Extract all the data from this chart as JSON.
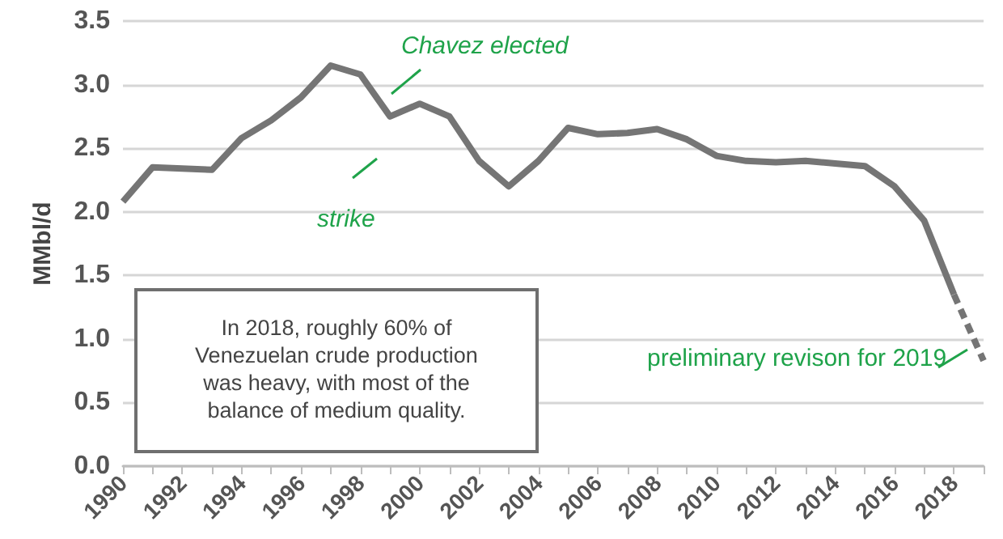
{
  "chart_data": {
    "type": "line",
    "ylabel": "MMbl/d",
    "categories": [
      "1990",
      null,
      "1992",
      null,
      "1994",
      null,
      "1996",
      null,
      "1998",
      null,
      "2000",
      null,
      "2002",
      null,
      "2004",
      null,
      "2006",
      null,
      "2008",
      null,
      "2010",
      null,
      "2012",
      null,
      "2014",
      null,
      "2016",
      null,
      "2018",
      null
    ],
    "series": [
      {
        "color": "#757575",
        "line_style": "solid",
        "values": [
          2.08,
          2.35,
          2.34,
          2.33,
          2.58,
          2.72,
          2.9,
          3.15,
          3.08,
          2.75,
          2.85,
          2.75,
          2.4,
          2.2,
          2.4,
          2.66,
          2.61,
          2.62,
          2.65,
          2.57,
          2.44,
          2.4,
          2.39,
          2.4,
          2.38,
          2.36,
          2.2,
          1.93,
          1.35,
          null
        ]
      },
      {
        "color": "#757575",
        "line_style": "dashed",
        "values": [
          null,
          null,
          null,
          null,
          null,
          null,
          null,
          null,
          null,
          null,
          null,
          null,
          null,
          null,
          null,
          null,
          null,
          null,
          null,
          null,
          null,
          null,
          null,
          null,
          null,
          null,
          null,
          null,
          1.35,
          0.83
        ]
      }
    ],
    "ylim": [
      0,
      3.5
    ],
    "yticks": [
      {
        "value": 0,
        "label": "0.0"
      },
      0.5,
      {
        "value": 1,
        "label": "1.0"
      },
      1.5,
      {
        "value": 2,
        "label": "2.0"
      },
      2.5,
      {
        "value": 3,
        "label": "3.0"
      },
      3.5
    ],
    "grid": "y",
    "marker": "none",
    "annotations": [
      "Chavez elected",
      "strike",
      "preliminary revison for 2019",
      "In 2018, roughly 60% of Venezuelan crude production was heavy, with most of the balance of medium quality."
    ]
  }
}
